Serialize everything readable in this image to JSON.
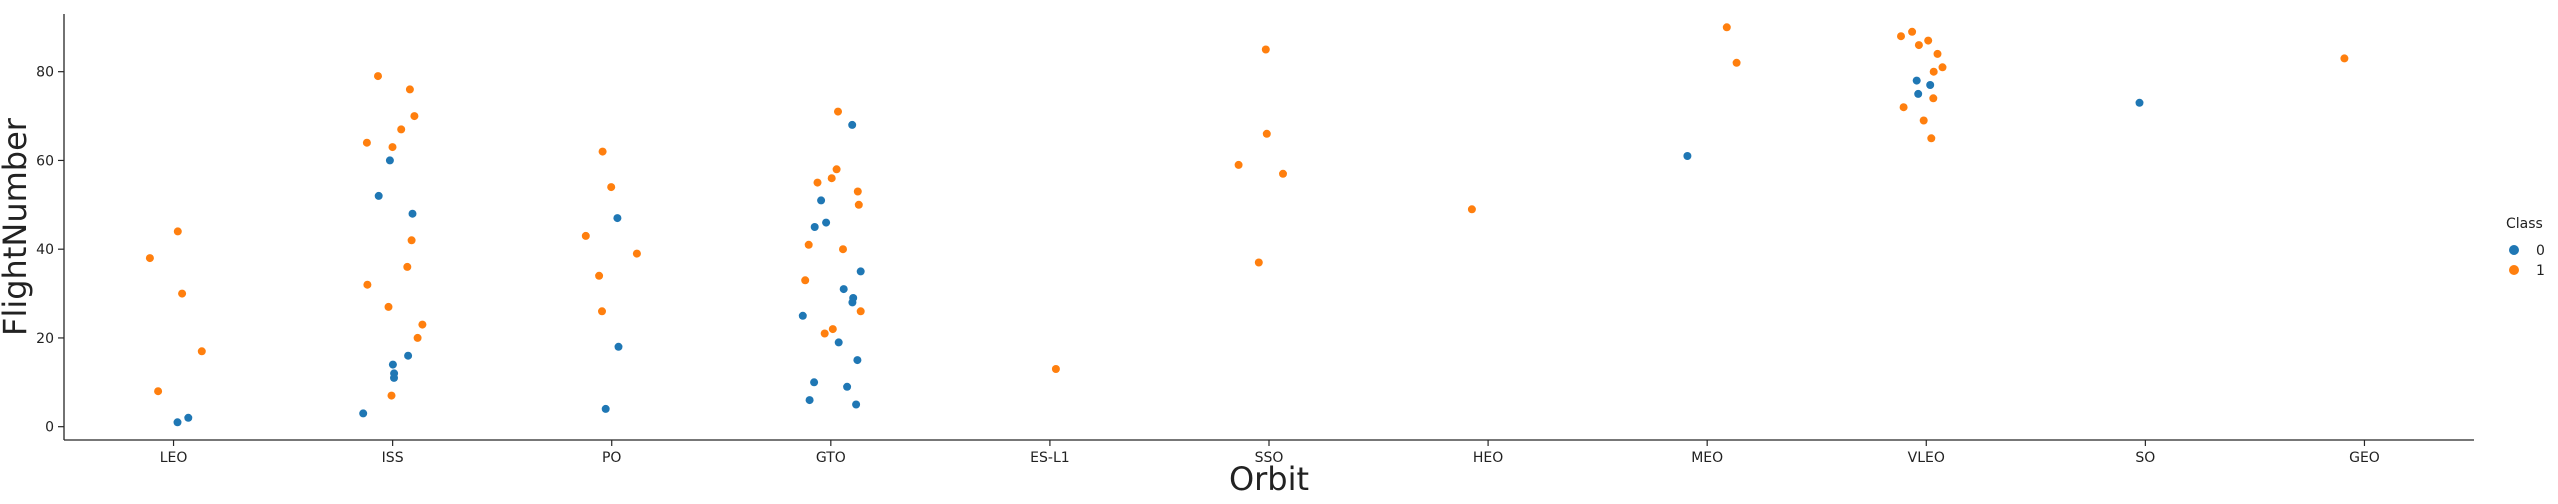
{
  "chart_data": {
    "type": "scatter",
    "title": "",
    "xlabel": "Orbit",
    "ylabel": "FlightNumber",
    "categories": [
      "LEO",
      "ISS",
      "PO",
      "GTO",
      "ES-L1",
      "SSO",
      "HEO",
      "MEO",
      "VLEO",
      "SO",
      "GEO"
    ],
    "yticks": [
      0,
      20,
      40,
      60,
      80
    ],
    "ylim": [
      -3,
      93
    ],
    "grid": false,
    "legend": {
      "title": "Class",
      "placement": "right",
      "entries": [
        {
          "label": "0",
          "color": "#1f77b4"
        },
        {
          "label": "1",
          "color": "#ff7f0e"
        }
      ]
    },
    "series": [
      {
        "name": "0",
        "color": "#1f77b4",
        "points": [
          [
            "LEO",
            2
          ],
          [
            "LEO",
            1
          ],
          [
            "ISS",
            60
          ],
          [
            "ISS",
            52
          ],
          [
            "ISS",
            48
          ],
          [
            "ISS",
            16
          ],
          [
            "ISS",
            14
          ],
          [
            "ISS",
            12
          ],
          [
            "ISS",
            11
          ],
          [
            "ISS",
            3
          ],
          [
            "PO",
            47
          ],
          [
            "PO",
            18
          ],
          [
            "PO",
            4
          ],
          [
            "GTO",
            68
          ],
          [
            "GTO",
            51
          ],
          [
            "GTO",
            46
          ],
          [
            "GTO",
            45
          ],
          [
            "GTO",
            35
          ],
          [
            "GTO",
            31
          ],
          [
            "GTO",
            29
          ],
          [
            "GTO",
            28
          ],
          [
            "GTO",
            25
          ],
          [
            "GTO",
            19
          ],
          [
            "GTO",
            15
          ],
          [
            "GTO",
            10
          ],
          [
            "GTO",
            9
          ],
          [
            "GTO",
            6
          ],
          [
            "GTO",
            5
          ],
          [
            "MEO",
            61
          ],
          [
            "VLEO",
            78
          ],
          [
            "VLEO",
            77
          ],
          [
            "VLEO",
            75
          ],
          [
            "SO",
            73
          ]
        ]
      },
      {
        "name": "1",
        "color": "#ff7f0e",
        "points": [
          [
            "LEO",
            44
          ],
          [
            "LEO",
            38
          ],
          [
            "LEO",
            30
          ],
          [
            "LEO",
            17
          ],
          [
            "LEO",
            8
          ],
          [
            "ISS",
            79
          ],
          [
            "ISS",
            76
          ],
          [
            "ISS",
            70
          ],
          [
            "ISS",
            67
          ],
          [
            "ISS",
            64
          ],
          [
            "ISS",
            63
          ],
          [
            "ISS",
            42
          ],
          [
            "ISS",
            36
          ],
          [
            "ISS",
            32
          ],
          [
            "ISS",
            27
          ],
          [
            "ISS",
            23
          ],
          [
            "ISS",
            20
          ],
          [
            "ISS",
            7
          ],
          [
            "PO",
            62
          ],
          [
            "PO",
            54
          ],
          [
            "PO",
            43
          ],
          [
            "PO",
            39
          ],
          [
            "PO",
            34
          ],
          [
            "PO",
            26
          ],
          [
            "GTO",
            71
          ],
          [
            "GTO",
            58
          ],
          [
            "GTO",
            56
          ],
          [
            "GTO",
            55
          ],
          [
            "GTO",
            53
          ],
          [
            "GTO",
            50
          ],
          [
            "GTO",
            41
          ],
          [
            "GTO",
            40
          ],
          [
            "GTO",
            33
          ],
          [
            "GTO",
            26
          ],
          [
            "GTO",
            22
          ],
          [
            "GTO",
            21
          ],
          [
            "ES-L1",
            13
          ],
          [
            "SSO",
            85
          ],
          [
            "SSO",
            66
          ],
          [
            "SSO",
            59
          ],
          [
            "SSO",
            57
          ],
          [
            "SSO",
            37
          ],
          [
            "HEO",
            49
          ],
          [
            "MEO",
            90
          ],
          [
            "MEO",
            82
          ],
          [
            "VLEO",
            89
          ],
          [
            "VLEO",
            88
          ],
          [
            "VLEO",
            87
          ],
          [
            "VLEO",
            86
          ],
          [
            "VLEO",
            84
          ],
          [
            "VLEO",
            81
          ],
          [
            "VLEO",
            80
          ],
          [
            "VLEO",
            74
          ],
          [
            "VLEO",
            72
          ],
          [
            "VLEO",
            69
          ],
          [
            "VLEO",
            65
          ],
          [
            "GEO",
            83
          ]
        ]
      }
    ]
  }
}
